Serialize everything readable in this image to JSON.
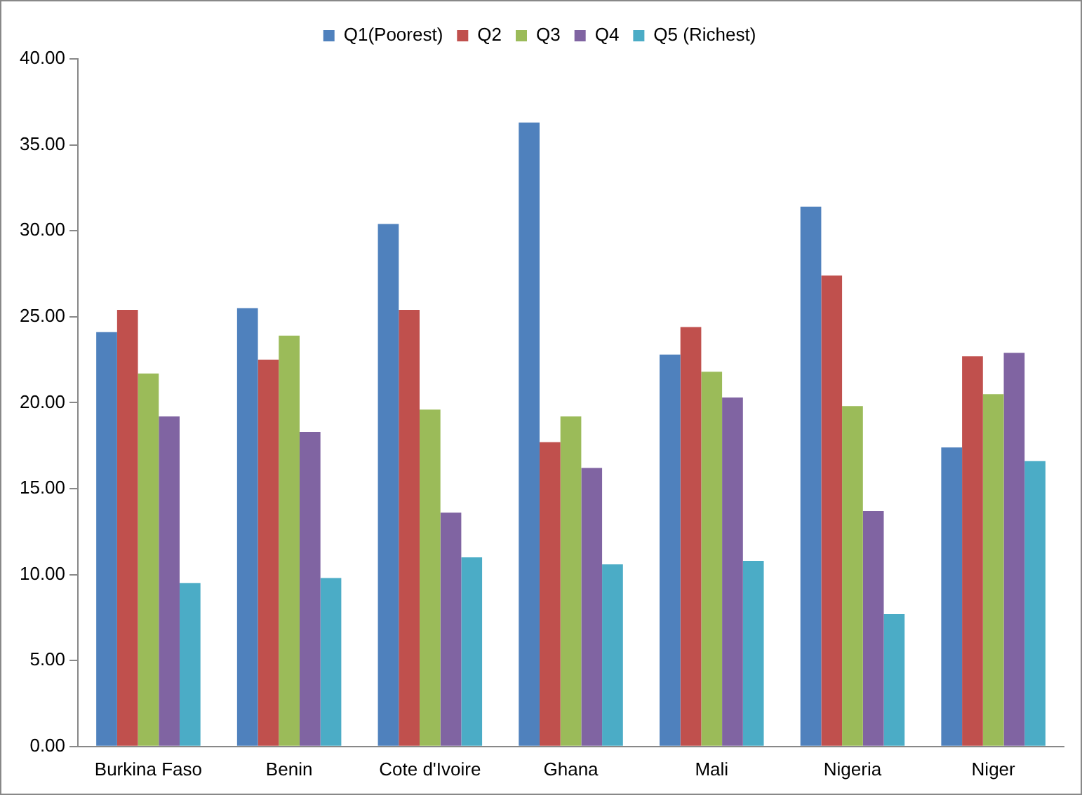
{
  "chart_data": {
    "type": "bar",
    "categories": [
      "Burkina Faso",
      "Benin",
      "Cote d'Ivoire",
      "Ghana",
      "Mali",
      "Nigeria",
      "Niger"
    ],
    "series": [
      {
        "name": "Q1(Poorest)",
        "color": "#4f81bd",
        "values": [
          24.1,
          25.5,
          30.4,
          36.3,
          22.8,
          31.4,
          17.4
        ]
      },
      {
        "name": "Q2",
        "color": "#c0504d",
        "values": [
          25.4,
          22.5,
          25.4,
          17.7,
          24.4,
          27.4,
          22.7
        ]
      },
      {
        "name": "Q3",
        "color": "#9bbb59",
        "values": [
          21.7,
          23.9,
          19.6,
          19.2,
          21.8,
          19.8,
          20.5
        ]
      },
      {
        "name": "Q4",
        "color": "#8064a2",
        "values": [
          19.2,
          18.3,
          13.6,
          16.2,
          20.3,
          13.7,
          22.9
        ]
      },
      {
        "name": "Q5 (Richest)",
        "color": "#4bacc6",
        "values": [
          9.5,
          9.8,
          11.0,
          10.6,
          10.8,
          7.7,
          16.6
        ]
      }
    ],
    "ylim": [
      0,
      40
    ],
    "yticks": [
      {
        "value": 0,
        "label": "0.00"
      },
      {
        "value": 5,
        "label": "5.00"
      },
      {
        "value": 10,
        "label": "10.00"
      },
      {
        "value": 15,
        "label": "15.00"
      },
      {
        "value": 20,
        "label": "20.00"
      },
      {
        "value": 25,
        "label": "25.00"
      },
      {
        "value": 30,
        "label": "30.00"
      },
      {
        "value": 35,
        "label": "35.00"
      },
      {
        "value": 40,
        "label": "40.00"
      }
    ],
    "grid": false,
    "legend": "top"
  }
}
